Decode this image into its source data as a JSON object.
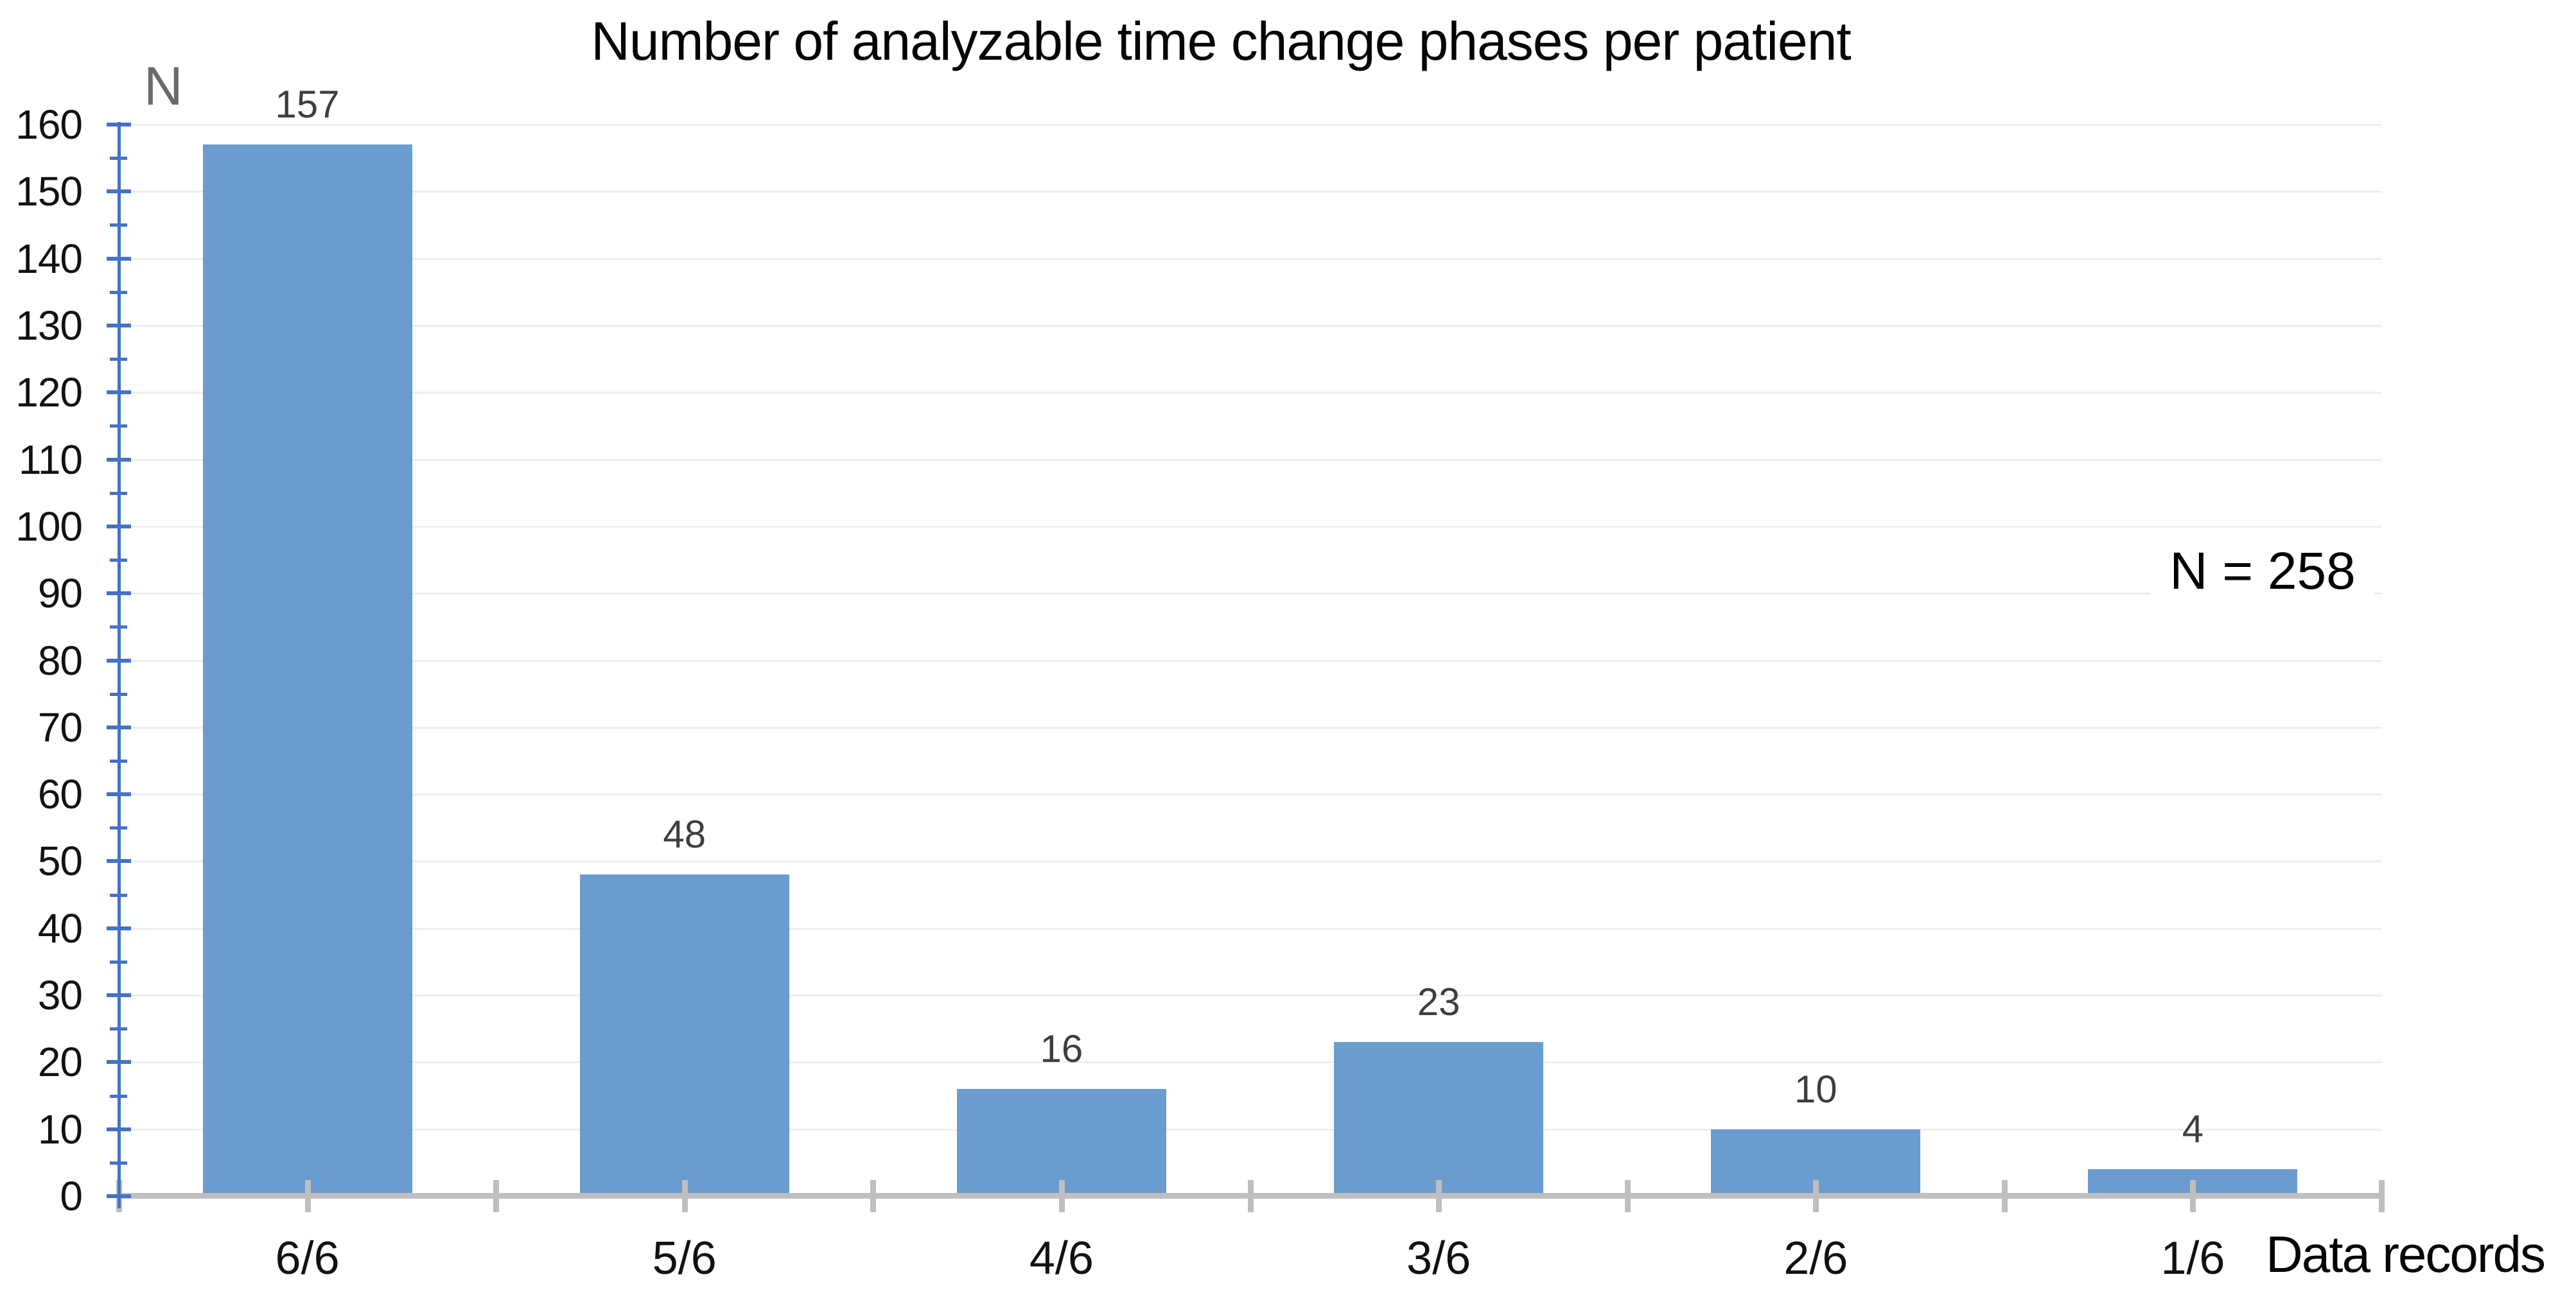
{
  "chart_data": {
    "type": "bar",
    "title": "Number of analyzable time change phases per patient",
    "y_axis_label": "N",
    "x_axis_label": "Data records",
    "annotation": "N = 258",
    "categories": [
      "6/6",
      "5/6",
      "4/6",
      "3/6",
      "2/6",
      "1/6"
    ],
    "values": [
      157,
      48,
      16,
      23,
      10,
      4
    ],
    "ylim": [
      0,
      160
    ],
    "y_major_step": 10,
    "y_minor_step": 5,
    "y_tick_labels": [
      "0",
      "10",
      "20",
      "30",
      "40",
      "50",
      "60",
      "70",
      "80",
      "90",
      "100",
      "110",
      "120",
      "130",
      "140",
      "150",
      "160"
    ],
    "grid": "horizontal-major",
    "legend": "none",
    "colors": {
      "bar_fill": "#6B9CCF",
      "y_axis": "#4472C4",
      "x_axis": "#BFBFBF",
      "gridline": "#EEEEEE",
      "title_text": "#050505",
      "data_label_text": "#3E3E3E",
      "tick_label_text": "#111111",
      "category_label_text": "#111111",
      "y_axis_title_text": "#6A6A6A",
      "x_axis_title_text": "#050505",
      "annotation_text": "#000000",
      "background": "#FFFFFF"
    }
  }
}
